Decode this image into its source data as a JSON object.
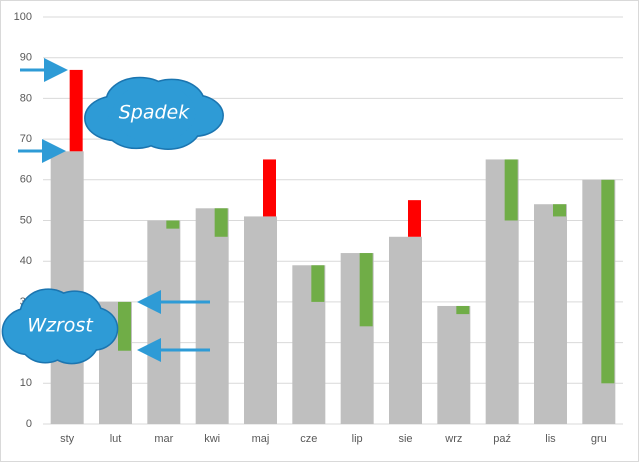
{
  "chart_data": {
    "type": "bar",
    "categories": [
      "sty",
      "lut",
      "mar",
      "kwi",
      "maj",
      "cze",
      "lip",
      "sie",
      "wrz",
      "paź",
      "lis",
      "gru"
    ],
    "series": [
      {
        "color": "#bfbfbf",
        "values": [
          67,
          30,
          50,
          53,
          51,
          39,
          42,
          46,
          29,
          65,
          54,
          60
        ]
      }
    ],
    "change": {
      "start_values": [
        87,
        18,
        48,
        46,
        65,
        30,
        24,
        55,
        27,
        50,
        51,
        10
      ],
      "up_color": "#70ad47",
      "down_color": "#ff0000"
    },
    "ylim": [
      0,
      100
    ],
    "yticks": [
      0,
      10,
      20,
      30,
      40,
      50,
      60,
      70,
      80,
      90,
      100
    ],
    "grid": true,
    "annotations": [
      "Spadek",
      "Wzrost"
    ]
  }
}
